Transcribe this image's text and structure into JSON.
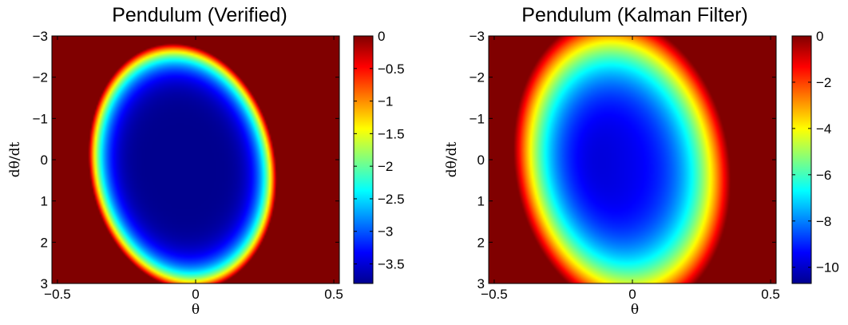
{
  "chart_data": [
    {
      "type": "heatmap",
      "title": "Pendulum (Verified)",
      "xlabel": "θ",
      "ylabel": "dθ/dt",
      "xlim": [
        -0.52,
        0.52
      ],
      "ylim": [
        -3,
        3
      ],
      "y_axis_reversed": true,
      "x_ticks": [
        -0.5,
        0,
        0.5
      ],
      "x_tick_labels": [
        "−0.5",
        "0",
        "0.5"
      ],
      "y_ticks": [
        -3,
        -2,
        -1,
        0,
        1,
        2,
        3
      ],
      "y_tick_labels": [
        "−3",
        "−2",
        "−1",
        "0",
        "1",
        "2",
        "3"
      ],
      "colormap": "jet",
      "clim": [
        -3.8,
        0
      ],
      "colorbar_ticks": [
        0,
        -0.5,
        -1,
        -1.5,
        -2,
        -2.5,
        -3,
        -3.5
      ],
      "colorbar_tick_labels": [
        "0",
        "−0.5",
        "−1",
        "−1.5",
        "−2",
        "−2.5",
        "−3",
        "−3.5"
      ],
      "region": {
        "shape": "tilted ellipse",
        "center": [
          -0.05,
          0.15
        ],
        "semi_axis_major": 3.0,
        "semi_axis_minor": 2.25,
        "min_value": -3.75,
        "outside_value": 0
      }
    },
    {
      "type": "heatmap",
      "title": "Pendulum (Kalman Filter)",
      "xlabel": "θ",
      "ylabel": "dθ/dt",
      "xlim": [
        -0.52,
        0.52
      ],
      "ylim": [
        -3,
        3
      ],
      "y_axis_reversed": true,
      "x_ticks": [
        -0.5,
        0,
        0.5
      ],
      "x_tick_labels": [
        "−0.5",
        "0",
        "0.5"
      ],
      "y_ticks": [
        -3,
        -2,
        -1,
        0,
        1,
        2,
        3
      ],
      "y_tick_labels": [
        "−3",
        "−2",
        "−1",
        "0",
        "1",
        "2",
        "3"
      ],
      "colormap": "jet",
      "clim": [
        -10.7,
        0
      ],
      "colorbar_ticks": [
        0,
        -2,
        -4,
        -6,
        -8,
        -10
      ],
      "colorbar_tick_labels": [
        "0",
        "−2",
        "−4",
        "−6",
        "−8",
        "−10"
      ],
      "region": {
        "shape": "tilted ellipse",
        "center": [
          -0.04,
          0.1
        ],
        "semi_axis_major": 3.6,
        "semi_axis_minor": 2.6,
        "min_value": -10.7,
        "outside_value": 0
      }
    }
  ]
}
